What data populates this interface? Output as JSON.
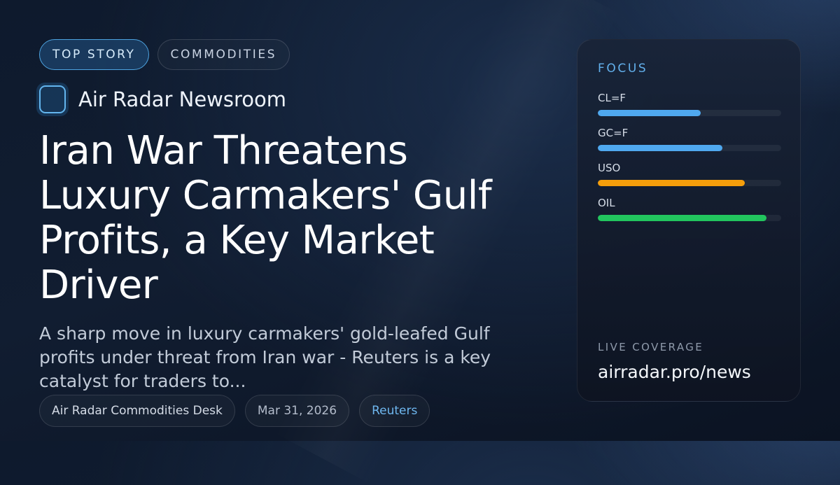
{
  "tags": {
    "primary": "TOP STORY",
    "secondary": "COMMODITIES"
  },
  "source": {
    "name": "Air Radar Newsroom"
  },
  "article": {
    "headline": "Iran War Threatens Luxury Carmakers' Gulf Profits, a Key Market Driver",
    "summary": "A sharp move in luxury carmakers' gold-leafed Gulf profits under threat from Iran war - Reuters is a key catalyst for traders to..."
  },
  "meta": {
    "desk": "Air Radar Commodities Desk",
    "date": "Mar 31, 2026",
    "publisher": "Reuters"
  },
  "focus": {
    "title": "FOCUS",
    "items": [
      {
        "label": "CL=F",
        "level": 0.56,
        "color": "#4fa8ef"
      },
      {
        "label": "GC=F",
        "level": 0.68,
        "color": "#4fa8ef"
      },
      {
        "label": "USO",
        "level": 0.8,
        "color": "#f59e0b"
      },
      {
        "label": "OIL",
        "level": 0.92,
        "color": "#22c55e"
      }
    ],
    "live_label": "LIVE COVERAGE",
    "live_link": "airradar.pro/news"
  }
}
